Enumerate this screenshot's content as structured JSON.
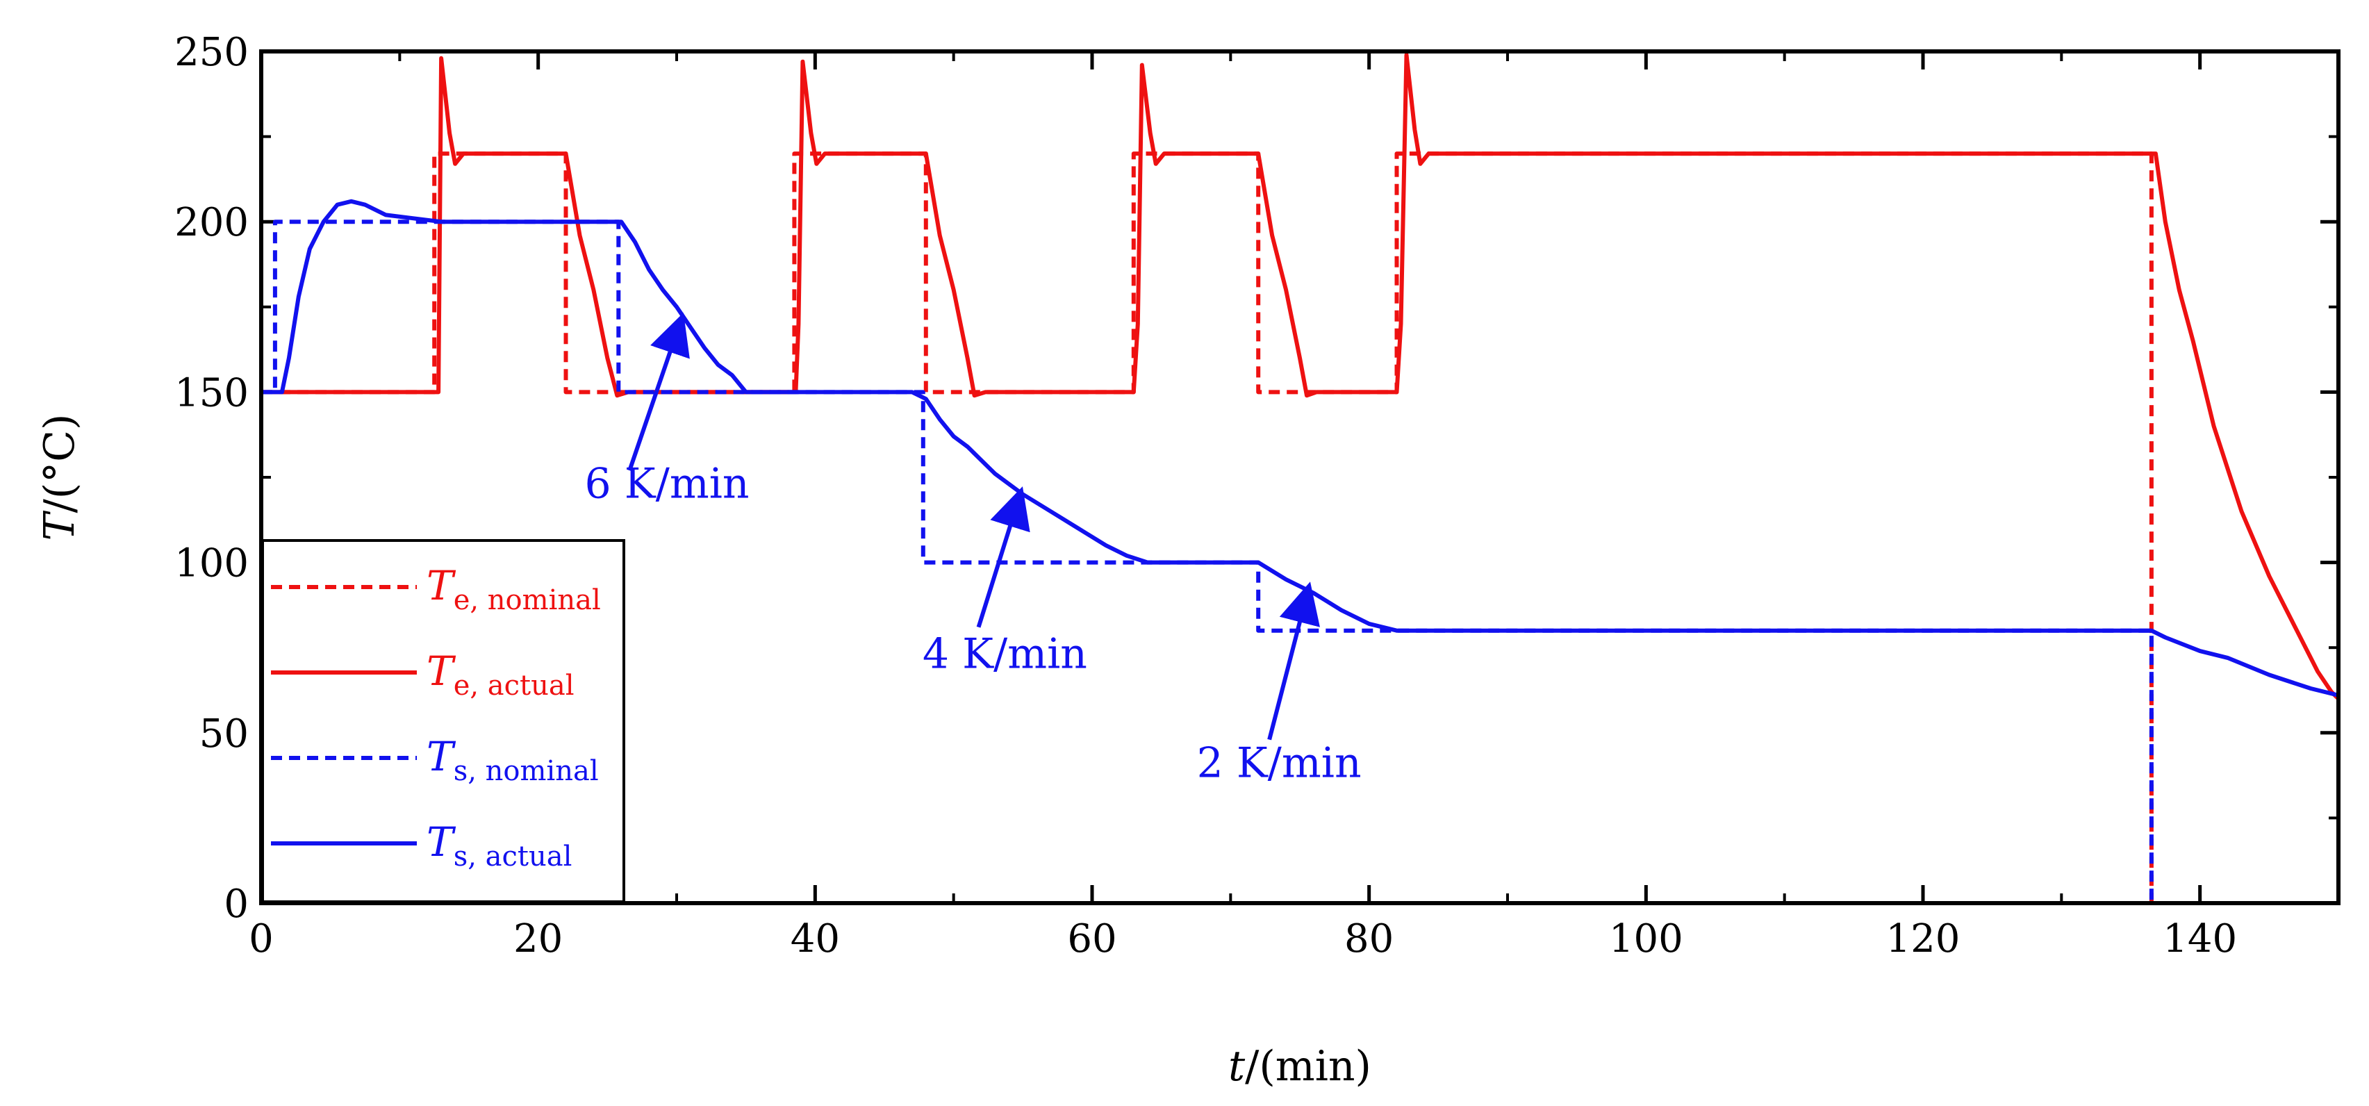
{
  "chart_data": {
    "type": "line",
    "xlabel": {
      "italic": "t",
      "rest": "/(min)"
    },
    "ylabel": {
      "italic": "T",
      "rest": "/(°C)"
    },
    "xlim": [
      0,
      150
    ],
    "ylim": [
      0,
      250
    ],
    "xticks": [
      0,
      20,
      40,
      60,
      80,
      100,
      120,
      140
    ],
    "yticks": [
      0,
      50,
      100,
      150,
      200,
      250
    ],
    "x_minor_ticks": [
      10,
      30,
      50,
      70,
      90,
      110,
      130
    ],
    "y_minor_ticks": [
      25,
      75,
      125,
      175,
      225
    ],
    "grid": false,
    "legend_position": "bottom-left",
    "colors": {
      "red": "#ee1111",
      "blue": "#1111ee",
      "axis": "#000000"
    },
    "series": [
      {
        "key": "Te_nominal",
        "label_main": "T",
        "label_sub": "e, nominal",
        "color": "#ee1111",
        "style": "dashed",
        "points": [
          [
            0,
            150
          ],
          [
            12.5,
            150
          ],
          [
            12.5,
            220
          ],
          [
            22,
            220
          ],
          [
            22,
            150
          ],
          [
            38.5,
            150
          ],
          [
            38.5,
            220
          ],
          [
            48,
            220
          ],
          [
            48,
            150
          ],
          [
            63,
            150
          ],
          [
            63,
            220
          ],
          [
            72,
            220
          ],
          [
            72,
            150
          ],
          [
            82,
            150
          ],
          [
            82,
            220
          ],
          [
            136.5,
            220
          ],
          [
            136.5,
            0
          ]
        ]
      },
      {
        "key": "Te_actual",
        "label_main": "T",
        "label_sub": "e, actual",
        "color": "#ee1111",
        "style": "solid",
        "points": [
          [
            0,
            150
          ],
          [
            12.8,
            150
          ],
          [
            13,
            248
          ],
          [
            13.6,
            226
          ],
          [
            14,
            217
          ],
          [
            14.6,
            220
          ],
          [
            22,
            220
          ],
          [
            23,
            196
          ],
          [
            24,
            180
          ],
          [
            25,
            160
          ],
          [
            25.7,
            149
          ],
          [
            26.5,
            150
          ],
          [
            38.6,
            150
          ],
          [
            38.8,
            170
          ],
          [
            39.1,
            247
          ],
          [
            39.7,
            226
          ],
          [
            40.1,
            217
          ],
          [
            40.7,
            220
          ],
          [
            48,
            220
          ],
          [
            49,
            196
          ],
          [
            50,
            180
          ],
          [
            51,
            160
          ],
          [
            51.5,
            149
          ],
          [
            52.3,
            150
          ],
          [
            63,
            150
          ],
          [
            63.3,
            170
          ],
          [
            63.6,
            246
          ],
          [
            64.2,
            226
          ],
          [
            64.6,
            217
          ],
          [
            65.2,
            220
          ],
          [
            72,
            220
          ],
          [
            73,
            196
          ],
          [
            74,
            180
          ],
          [
            75,
            160
          ],
          [
            75.5,
            149
          ],
          [
            76.2,
            150
          ],
          [
            82,
            150
          ],
          [
            82.3,
            170
          ],
          [
            82.7,
            249
          ],
          [
            83.3,
            227
          ],
          [
            83.7,
            217
          ],
          [
            84.3,
            220
          ],
          [
            136.8,
            220
          ],
          [
            137.5,
            200
          ],
          [
            138.5,
            180
          ],
          [
            139.5,
            165
          ],
          [
            141,
            140
          ],
          [
            143,
            115
          ],
          [
            145,
            96
          ],
          [
            147,
            80
          ],
          [
            148.5,
            68
          ],
          [
            149.5,
            62
          ],
          [
            150,
            60
          ]
        ]
      },
      {
        "key": "Ts_nominal",
        "label_main": "T",
        "label_sub": "s, nominal",
        "color": "#1111ee",
        "style": "dashed",
        "points": [
          [
            0,
            150
          ],
          [
            1,
            150
          ],
          [
            1,
            200
          ],
          [
            25.8,
            200
          ],
          [
            25.8,
            150
          ],
          [
            47.8,
            150
          ],
          [
            47.8,
            100
          ],
          [
            72,
            100
          ],
          [
            72,
            80
          ],
          [
            136.5,
            80
          ],
          [
            136.5,
            0
          ]
        ]
      },
      {
        "key": "Ts_actual",
        "label_main": "T",
        "label_sub": "s, actual",
        "color": "#1111ee",
        "style": "solid",
        "points": [
          [
            0,
            150
          ],
          [
            1.5,
            150
          ],
          [
            2,
            160
          ],
          [
            2.7,
            178
          ],
          [
            3.5,
            192
          ],
          [
            4.5,
            200
          ],
          [
            5.5,
            205
          ],
          [
            6.5,
            206
          ],
          [
            7.5,
            205
          ],
          [
            9,
            202
          ],
          [
            11,
            201
          ],
          [
            13,
            200
          ],
          [
            20,
            200
          ],
          [
            26,
            200
          ],
          [
            27,
            194
          ],
          [
            28,
            186
          ],
          [
            29,
            180
          ],
          [
            30,
            175
          ],
          [
            31,
            169
          ],
          [
            32,
            163
          ],
          [
            33,
            158
          ],
          [
            34,
            155
          ],
          [
            35,
            150
          ],
          [
            36,
            150
          ],
          [
            46,
            150
          ],
          [
            47,
            150
          ],
          [
            48,
            148
          ],
          [
            49,
            142
          ],
          [
            50,
            137
          ],
          [
            51,
            134
          ],
          [
            52,
            130
          ],
          [
            53,
            126
          ],
          [
            55,
            120
          ],
          [
            57,
            115
          ],
          [
            59,
            110
          ],
          [
            61,
            105
          ],
          [
            62.5,
            102
          ],
          [
            64,
            100
          ],
          [
            72,
            100
          ],
          [
            74,
            95
          ],
          [
            76,
            91
          ],
          [
            78,
            86
          ],
          [
            80,
            82
          ],
          [
            82,
            80
          ],
          [
            136.5,
            80
          ],
          [
            137.5,
            78
          ],
          [
            140,
            74
          ],
          [
            142,
            72
          ],
          [
            145,
            67
          ],
          [
            148,
            63
          ],
          [
            150,
            61
          ]
        ]
      }
    ],
    "annotations": [
      {
        "text": "6 K/min",
        "x": 29.3,
        "y": 119,
        "arrow_from": [
          26.6,
          127
        ],
        "arrow_to": [
          30.3,
          171
        ],
        "color": "#1111ee"
      },
      {
        "text": "4 K/min",
        "x": 53.7,
        "y": 69,
        "arrow_from": [
          51.8,
          81
        ],
        "arrow_to": [
          54.8,
          120
        ],
        "color": "#1111ee"
      },
      {
        "text": "2 K/min",
        "x": 73.5,
        "y": 37,
        "arrow_from": [
          72.8,
          48
        ],
        "arrow_to": [
          75.6,
          92
        ],
        "color": "#1111ee"
      }
    ]
  }
}
